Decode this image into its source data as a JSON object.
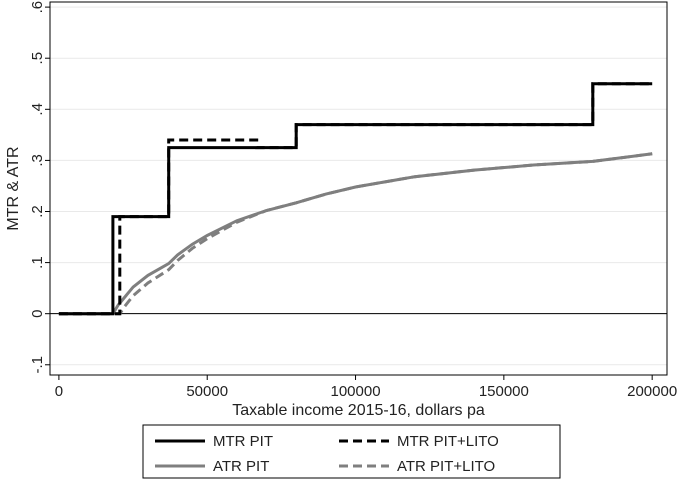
{
  "chart_data": {
    "type": "line",
    "xlabel": "Taxable income 2015-16, dollars pa",
    "ylabel": "MTR & ATR",
    "xlim": [
      -3000,
      205000
    ],
    "ylim": [
      -0.12,
      0.61
    ],
    "x_ticks": [
      {
        "value": 0,
        "label": "0"
      },
      {
        "value": 50000,
        "label": "50000"
      },
      {
        "value": 100000,
        "label": "100000"
      },
      {
        "value": 150000,
        "label": "150000"
      },
      {
        "value": 200000,
        "label": "200000"
      }
    ],
    "y_ticks": [
      {
        "value": -0.1,
        "label": "-.1"
      },
      {
        "value": 0,
        "label": "0"
      },
      {
        "value": 0.1,
        "label": ".1"
      },
      {
        "value": 0.2,
        "label": ".2"
      },
      {
        "value": 0.3,
        "label": ".3"
      },
      {
        "value": 0.4,
        "label": ".4"
      },
      {
        "value": 0.5,
        "label": ".5"
      },
      {
        "value": 0.6,
        "label": ".6"
      }
    ],
    "grid": "horizontal",
    "legend_position": "bottom",
    "series": [
      {
        "name": "MTR PIT",
        "color": "#000000",
        "dash": "solid",
        "step": true,
        "points": [
          [
            0,
            0
          ],
          [
            18200,
            0
          ],
          [
            18200,
            0.19
          ],
          [
            37000,
            0.19
          ],
          [
            37000,
            0.325
          ],
          [
            80000,
            0.325
          ],
          [
            80000,
            0.37
          ],
          [
            180000,
            0.37
          ],
          [
            180000,
            0.45
          ],
          [
            200000,
            0.45
          ]
        ]
      },
      {
        "name": "MTR PIT+LITO",
        "color": "#000000",
        "dash": "dashed",
        "step": true,
        "points": [
          [
            0,
            0
          ],
          [
            20542,
            0
          ],
          [
            20542,
            0.19
          ],
          [
            37000,
            0.19
          ],
          [
            37000,
            0.34
          ],
          [
            66667,
            0.34
          ],
          [
            66667,
            0.325
          ],
          [
            80000,
            0.325
          ],
          [
            80000,
            0.37
          ],
          [
            180000,
            0.37
          ],
          [
            180000,
            0.45
          ],
          [
            200000,
            0.45
          ]
        ]
      },
      {
        "name": "ATR PIT",
        "color": "#7f7f7f",
        "dash": "solid",
        "step": false,
        "points": [
          [
            0,
            0
          ],
          [
            18200,
            0
          ],
          [
            20000,
            0.017
          ],
          [
            25000,
            0.052
          ],
          [
            30000,
            0.075
          ],
          [
            37000,
            0.098
          ],
          [
            40000,
            0.115
          ],
          [
            45000,
            0.136
          ],
          [
            50000,
            0.153
          ],
          [
            60000,
            0.182
          ],
          [
            70000,
            0.202
          ],
          [
            80000,
            0.217
          ],
          [
            90000,
            0.234
          ],
          [
            100000,
            0.248
          ],
          [
            120000,
            0.268
          ],
          [
            140000,
            0.281
          ],
          [
            160000,
            0.291
          ],
          [
            180000,
            0.298
          ],
          [
            200000,
            0.313
          ]
        ]
      },
      {
        "name": "ATR PIT+LITO",
        "color": "#7f7f7f",
        "dash": "dashed",
        "step": false,
        "points": [
          [
            0,
            0
          ],
          [
            20542,
            0
          ],
          [
            22000,
            0.013
          ],
          [
            25000,
            0.035
          ],
          [
            30000,
            0.06
          ],
          [
            37000,
            0.086
          ],
          [
            40000,
            0.104
          ],
          [
            45000,
            0.128
          ],
          [
            50000,
            0.147
          ],
          [
            60000,
            0.179
          ],
          [
            70000,
            0.202
          ],
          [
            80000,
            0.217
          ],
          [
            90000,
            0.234
          ],
          [
            100000,
            0.248
          ],
          [
            120000,
            0.268
          ],
          [
            140000,
            0.281
          ],
          [
            160000,
            0.291
          ],
          [
            180000,
            0.298
          ],
          [
            200000,
            0.313
          ]
        ]
      }
    ]
  }
}
